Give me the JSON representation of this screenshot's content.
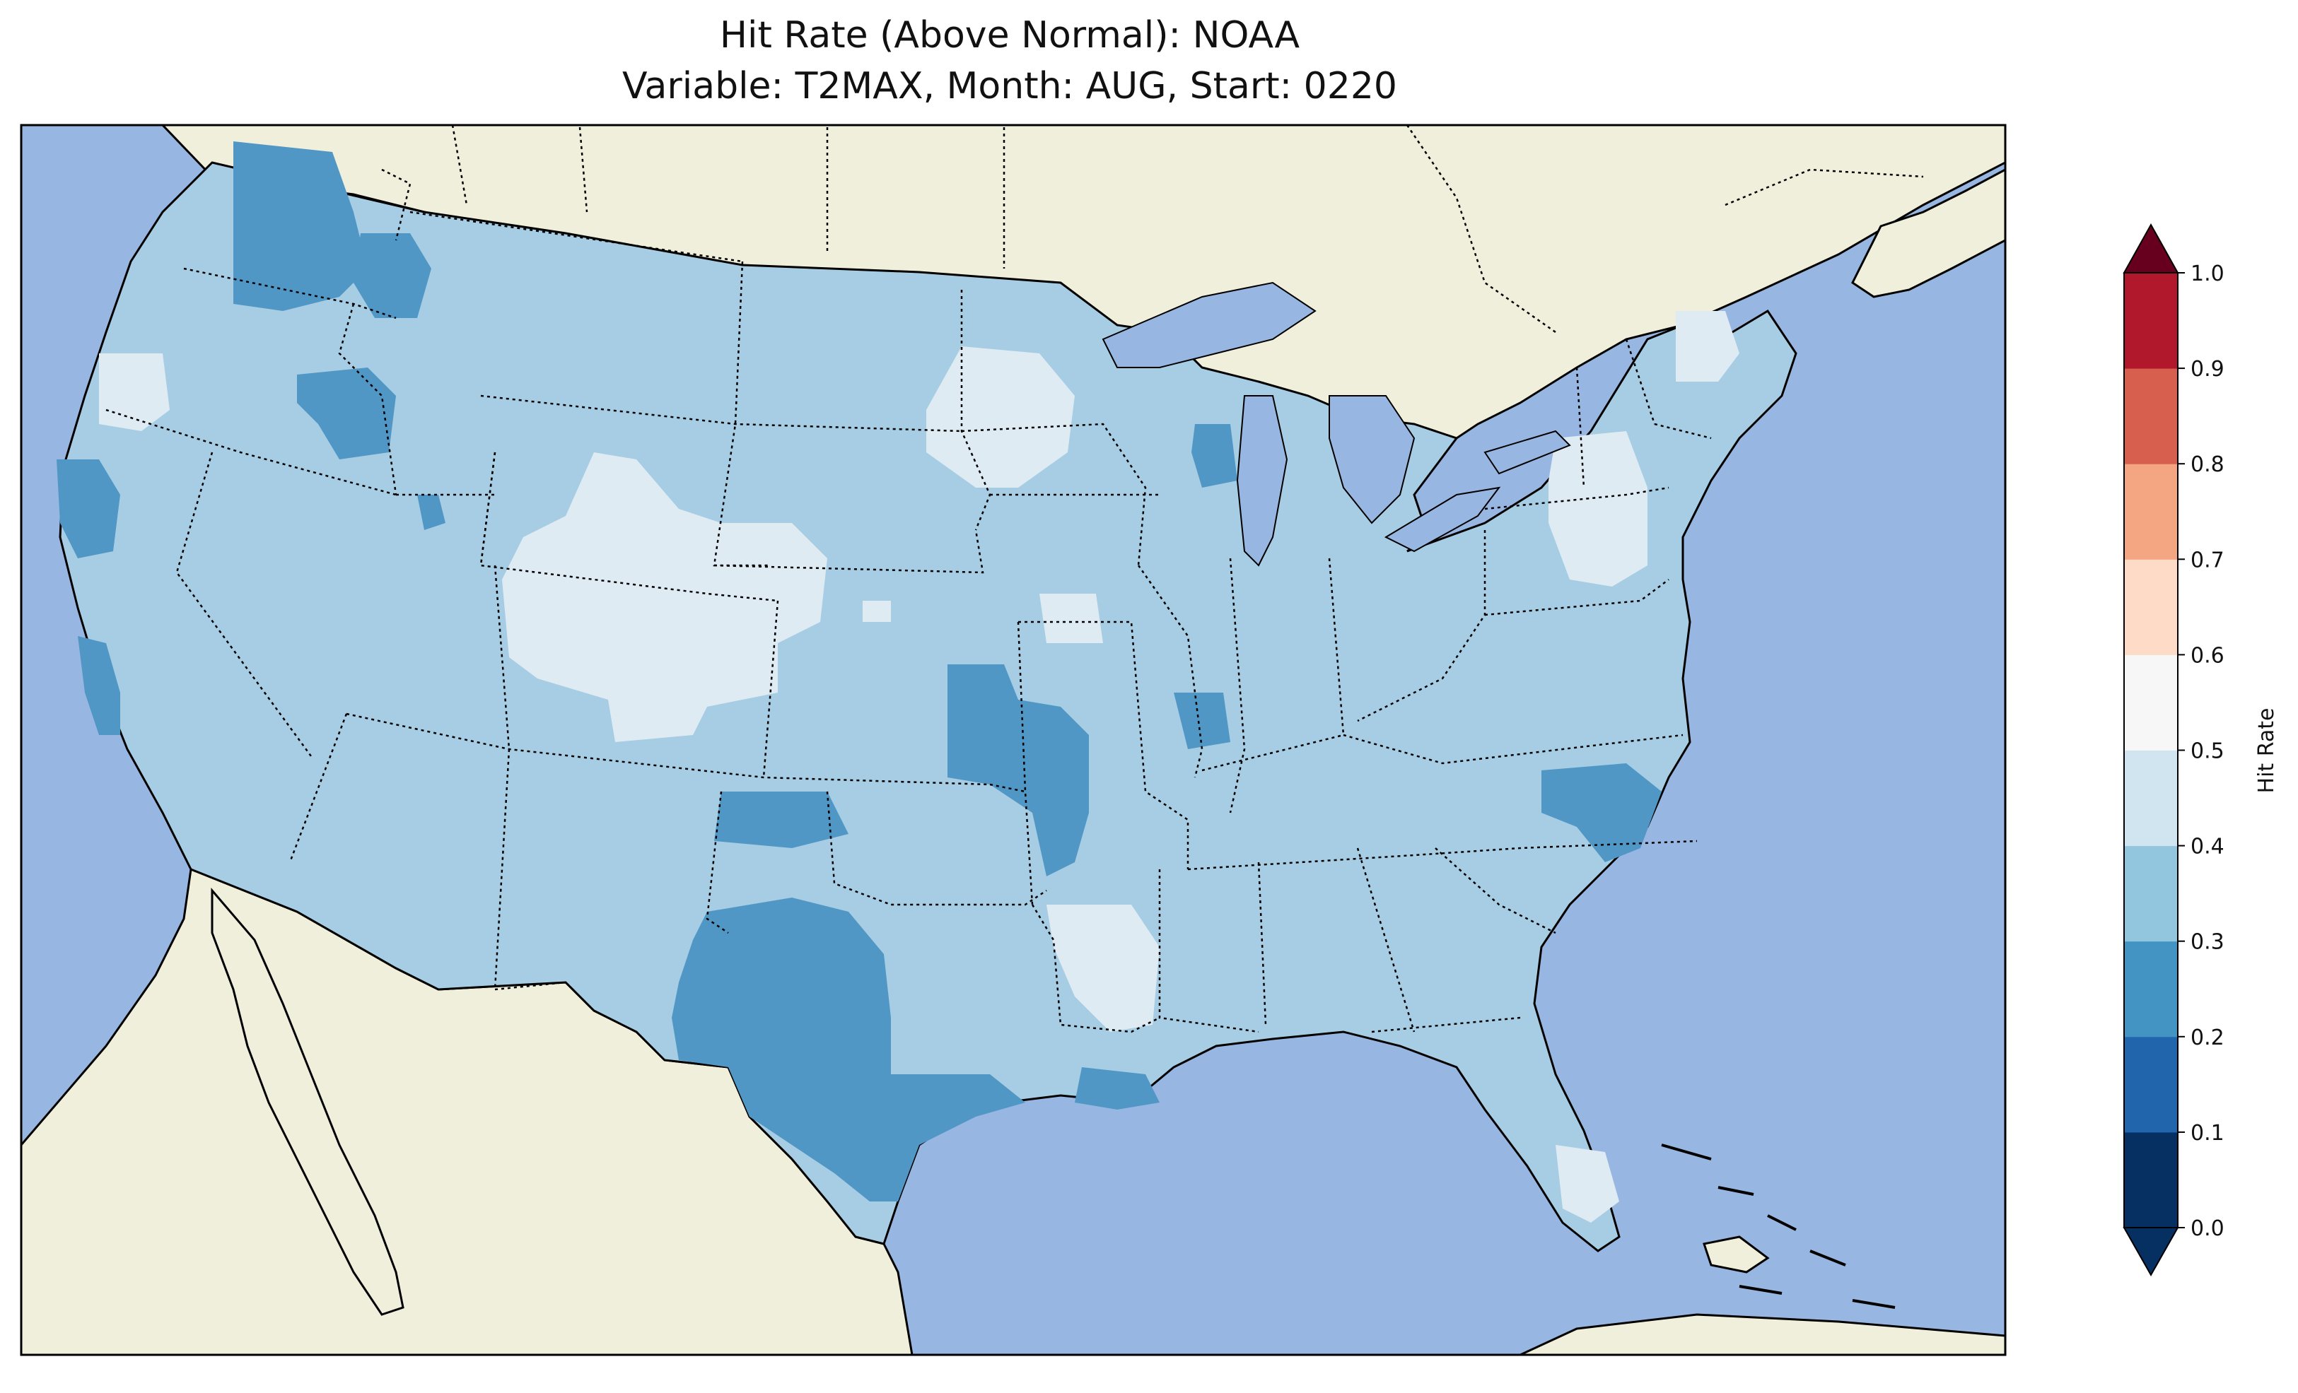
{
  "title": {
    "line1": "Hit Rate (Above Normal): NOAA",
    "line2": "Variable: T2MAX, Month: AUG, Start: 0220"
  },
  "colorbar": {
    "label": "Hit Rate",
    "ticks": [
      "0.0",
      "0.1",
      "0.2",
      "0.3",
      "0.4",
      "0.5",
      "0.6",
      "0.7",
      "0.8",
      "0.9",
      "1.0"
    ],
    "colors": [
      "#053061",
      "#2166ac",
      "#4393c3",
      "#92c5de",
      "#d1e5f0",
      "#f7f7f7",
      "#fddbc7",
      "#f4a582",
      "#d6604d",
      "#b2182b"
    ],
    "under_color": "#053061",
    "over_color": "#67001f"
  },
  "map": {
    "ocean_color": "#97b6e1",
    "land_color": "#efefdb",
    "bin_colors": {
      "0.2-0.3": "#5097c6",
      "0.3-0.4": "#a6cde3",
      "0.4-0.5": "#dfebf3"
    },
    "dominant_bin": "0.3-0.4",
    "regions": [
      {
        "area": "Washington (Cascades)",
        "bin": "0.2-0.3"
      },
      {
        "area": "Northern Idaho",
        "bin": "0.2-0.3"
      },
      {
        "area": "Eastern Oregon",
        "bin": "0.2-0.3"
      },
      {
        "area": "Northern California coast",
        "bin": "0.2-0.3"
      },
      {
        "area": "Central California coast",
        "bin": "0.2-0.3"
      },
      {
        "area": "Wisconsin (east)",
        "bin": "0.2-0.3"
      },
      {
        "area": "Kansas / Missouri",
        "bin": "0.2-0.3"
      },
      {
        "area": "Illinois (south)",
        "bin": "0.2-0.3"
      },
      {
        "area": "Oklahoma panhandle",
        "bin": "0.2-0.3"
      },
      {
        "area": "Texas",
        "bin": "0.2-0.3"
      },
      {
        "area": "Louisiana coast",
        "bin": "0.2-0.3"
      },
      {
        "area": "North Carolina",
        "bin": "0.2-0.3"
      },
      {
        "area": "Wyoming / Colorado",
        "bin": "0.4-0.5"
      },
      {
        "area": "Nebraska (west)",
        "bin": "0.4-0.5"
      },
      {
        "area": "Minnesota",
        "bin": "0.4-0.5"
      },
      {
        "area": "Arkansas",
        "bin": "0.4-0.5"
      },
      {
        "area": "Pennsylvania / New York",
        "bin": "0.4-0.5"
      },
      {
        "area": "Vermont / New Hampshire",
        "bin": "0.4-0.5"
      },
      {
        "area": "Southern Florida",
        "bin": "0.4-0.5"
      },
      {
        "area": "Oregon coast",
        "bin": "0.4-0.5"
      }
    ]
  }
}
